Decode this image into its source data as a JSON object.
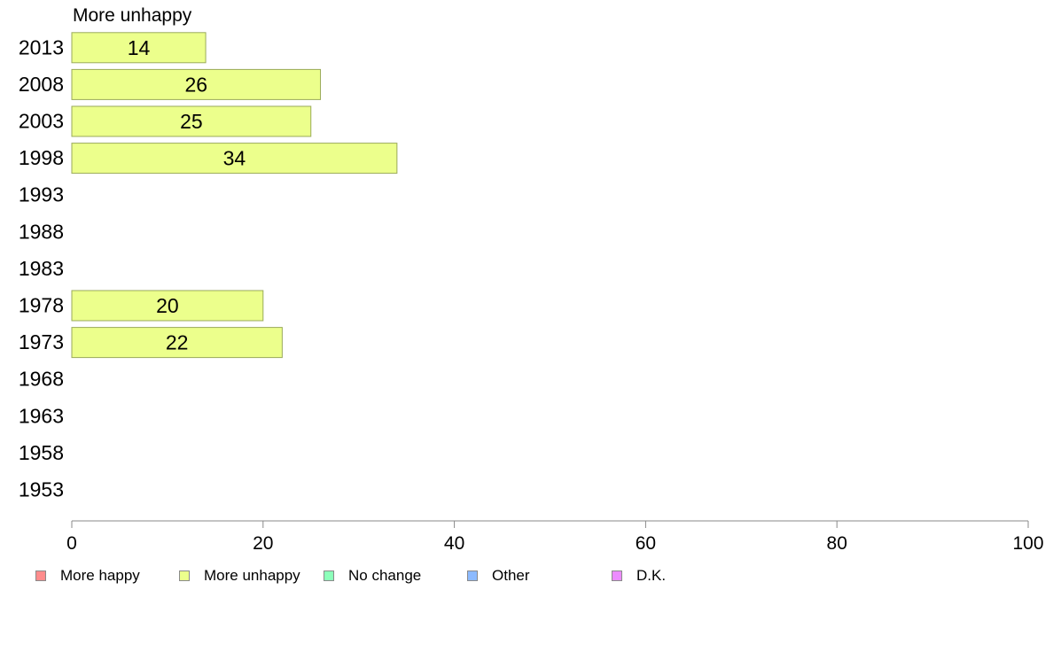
{
  "panel_title": "More unhappy",
  "colors": {
    "more_happy": "#FF8C8C",
    "more_unhappy": "#ECFF8C",
    "no_change": "#8CFFBA",
    "other": "#8CBAFF",
    "dk": "#EC8CFF",
    "bar_stroke": "#9AAA5A",
    "axis": "#888888"
  },
  "legend": [
    {
      "label": "More happy",
      "color": "#FF8C8C"
    },
    {
      "label": "More unhappy",
      "color": "#ECFF8C"
    },
    {
      "label": "No change",
      "color": "#8CFFBA"
    },
    {
      "label": "Other",
      "color": "#8CBAFF"
    },
    {
      "label": "D.K.",
      "color": "#EC8CFF"
    }
  ],
  "chart_data": {
    "type": "bar",
    "orientation": "horizontal",
    "title": "More unhappy",
    "categories": [
      "2013",
      "2008",
      "2003",
      "1998",
      "1993",
      "1988",
      "1983",
      "1978",
      "1973",
      "1968",
      "1963",
      "1958",
      "1953"
    ],
    "series": [
      {
        "name": "More unhappy",
        "values": [
          14,
          26,
          25,
          34,
          null,
          null,
          null,
          20,
          22,
          null,
          null,
          null,
          null
        ]
      }
    ],
    "data_labels": [
      "14",
      "26",
      "25",
      "34",
      "",
      "",
      "",
      "20",
      "22",
      "",
      "",
      "",
      ""
    ],
    "xlim": [
      0,
      100
    ],
    "xticks": [
      0,
      20,
      40,
      60,
      80,
      100
    ],
    "xlabel": "",
    "ylabel": "",
    "grid": false,
    "legend_position": "bottom"
  }
}
